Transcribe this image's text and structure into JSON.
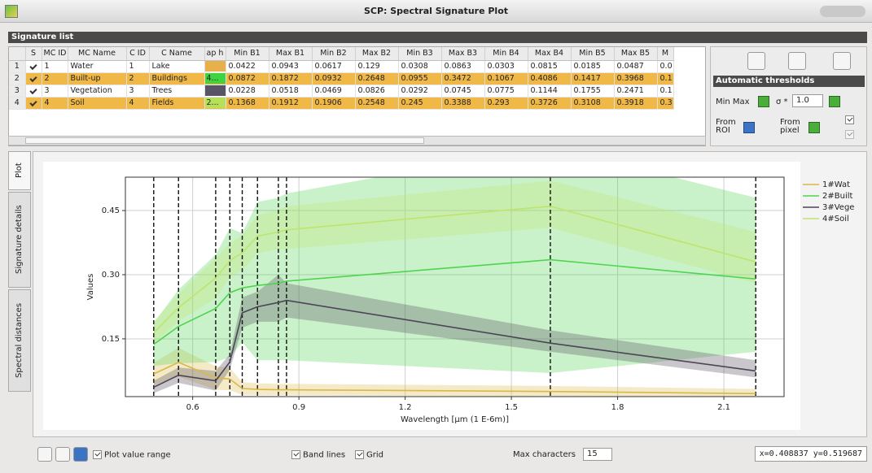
{
  "window": {
    "title": "SCP: Spectral Signature Plot"
  },
  "signature_list": {
    "title": "Signature list",
    "columns": [
      "S",
      "MC ID",
      "MC Name",
      "C ID",
      "C Name",
      "ap h",
      "Min B1",
      "Max B1",
      "Min B2",
      "Max B2",
      "Min B3",
      "Max B3",
      "Min B4",
      "Max B4",
      "Min B5",
      "Max B5",
      "M"
    ],
    "rows": [
      {
        "index": "1",
        "selected": false,
        "color": "#e8b04a",
        "cells": [
          "1",
          "Water",
          "1",
          "Lake",
          "0.0422",
          "0.0943",
          "0.0617",
          "0.129",
          "0.0308",
          "0.0863",
          "0.0303",
          "0.0815",
          "0.0185",
          "0.0487",
          "0.0"
        ]
      },
      {
        "index": "2",
        "selected": true,
        "color": "#3fd43f",
        "color_label": "4...",
        "cells": [
          "2",
          "Built-up",
          "2",
          "Buildings",
          "0.0872",
          "0.1872",
          "0.0932",
          "0.2648",
          "0.0955",
          "0.3472",
          "0.1067",
          "0.4086",
          "0.1417",
          "0.3968",
          "0.1"
        ]
      },
      {
        "index": "3",
        "selected": false,
        "color": "#5a5566",
        "cells": [
          "3",
          "Vegetation",
          "3",
          "Trees",
          "0.0228",
          "0.0518",
          "0.0469",
          "0.0826",
          "0.0292",
          "0.0745",
          "0.0775",
          "0.1144",
          "0.1755",
          "0.2471",
          "0.1"
        ]
      },
      {
        "index": "4",
        "selected": true,
        "color": "#b6e05a",
        "color_label": "2...",
        "cells": [
          "4",
          "Soil",
          "4",
          "Fields",
          "0.1368",
          "0.1912",
          "0.1906",
          "0.2548",
          "0.245",
          "0.3388",
          "0.293",
          "0.3726",
          "0.3108",
          "0.3918",
          "0.3"
        ]
      }
    ]
  },
  "threshold_panel": {
    "title": "Automatic thresholds",
    "min_max": "Min Max",
    "sigma": "σ *",
    "sigma_value": "1.0",
    "from_roi": "From ROI",
    "from_pixel": "From pixel"
  },
  "tabs": [
    "Plot",
    "Signature details",
    "Spectral distances"
  ],
  "toolbar": {
    "plot_value_range": "Plot value range",
    "band_lines": "Band lines",
    "grid": "Grid",
    "max_characters": "Max characters",
    "max_characters_value": "15",
    "coordinates": "x=0.408837 y=0.519687"
  },
  "chart_data": {
    "type": "line",
    "xlabel": "Wavelength [µm (1 E-6m)]",
    "ylabel": "Values",
    "x": [
      0.49,
      0.56,
      0.665,
      0.705,
      0.74,
      0.783,
      0.842,
      0.865,
      1.61,
      2.19
    ],
    "series": [
      {
        "name": "1#Wat",
        "color": "#d9b84a",
        "values": [
          0.068,
          0.095,
          0.059,
          0.056,
          0.034,
          0.032,
          0.031,
          0.031,
          0.027,
          0.022
        ],
        "lower": [
          0.042,
          0.062,
          0.031,
          0.03,
          0.019,
          0.018,
          0.018,
          0.018,
          0.015,
          0.012
        ],
        "upper": [
          0.094,
          0.129,
          0.086,
          0.082,
          0.049,
          0.046,
          0.045,
          0.045,
          0.04,
          0.033
        ]
      },
      {
        "name": "2#Built",
        "color": "#4fd44f",
        "values": [
          0.137,
          0.179,
          0.221,
          0.258,
          0.269,
          0.275,
          0.28,
          0.285,
          0.335,
          0.29
        ],
        "lower": [
          0.087,
          0.093,
          0.096,
          0.107,
          0.142,
          0.1,
          0.1,
          0.1,
          0.07,
          0.12
        ],
        "upper": [
          0.187,
          0.265,
          0.347,
          0.409,
          0.397,
          0.47,
          0.48,
          0.49,
          0.6,
          0.48
        ]
      },
      {
        "name": "3#Vege",
        "color": "#4b4656",
        "values": [
          0.037,
          0.065,
          0.052,
          0.096,
          0.211,
          0.225,
          0.235,
          0.24,
          0.14,
          0.075
        ],
        "lower": [
          0.023,
          0.047,
          0.029,
          0.078,
          0.176,
          0.19,
          0.19,
          0.2,
          0.12,
          0.06
        ],
        "upper": [
          0.052,
          0.083,
          0.075,
          0.114,
          0.247,
          0.26,
          0.3,
          0.28,
          0.17,
          0.1
        ]
      },
      {
        "name": "4#Soil",
        "color": "#bfe46e",
        "values": [
          0.164,
          0.223,
          0.292,
          0.333,
          0.351,
          0.39,
          0.4,
          0.405,
          0.46,
          0.33
        ],
        "lower": [
          0.137,
          0.191,
          0.245,
          0.293,
          0.311,
          0.35,
          0.36,
          0.36,
          0.41,
          0.28
        ],
        "upper": [
          0.191,
          0.255,
          0.339,
          0.373,
          0.392,
          0.44,
          0.45,
          0.46,
          0.52,
          0.4
        ]
      }
    ],
    "xlim": [
      0.41,
      2.27
    ],
    "ylim": [
      0.015,
      0.528
    ],
    "xticks": [
      0.6,
      0.9,
      1.2,
      1.5,
      1.8,
      2.1
    ],
    "yticks": [
      0.15,
      {
        "value": 0.3,
        "label": "0.30"
      },
      0.45
    ],
    "grid": true,
    "band_lines": true,
    "plot_value_range": true,
    "legend": "outside-right"
  }
}
